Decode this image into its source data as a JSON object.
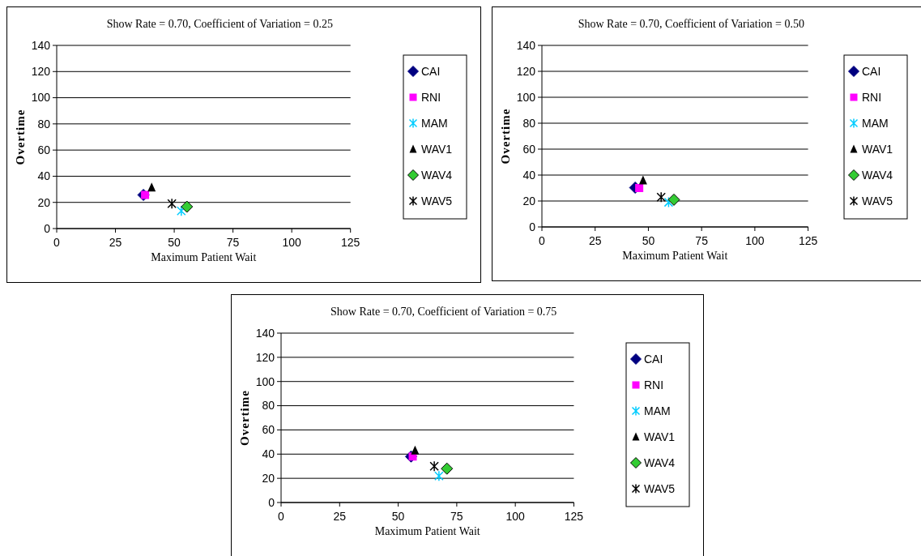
{
  "chart_data": [
    {
      "type": "scatter",
      "title": "Show Rate = 0.70, Coefficient of Variation = 0.25",
      "xlabel": "Maximum Patient Wait",
      "ylabel": "Overtime",
      "xlim": [
        0,
        125
      ],
      "xticks": [
        0,
        25,
        50,
        75,
        100,
        125
      ],
      "ylim": [
        0,
        140
      ],
      "yticks": [
        0,
        20,
        40,
        60,
        80,
        100,
        120,
        140
      ],
      "grid": "y",
      "legend": "right",
      "series": [
        {
          "name": "CAI",
          "color": "#000080",
          "marker": "diamond",
          "x": [
            36.9
          ],
          "values": [
            25.7
          ]
        },
        {
          "name": "RNI",
          "color": "#ff00ff",
          "marker": "square",
          "x": [
            37.6
          ],
          "values": [
            25.7
          ]
        },
        {
          "name": "MAM",
          "color": "#00ccff",
          "marker": "cross",
          "x": [
            53
          ],
          "values": [
            13.5
          ]
        },
        {
          "name": "WAV1",
          "color": "#000000",
          "marker": "triangle",
          "x": [
            40.4
          ],
          "values": [
            31.5
          ]
        },
        {
          "name": "WAV4",
          "color": "#33cc33",
          "marker": "diamond",
          "x": [
            55.4
          ],
          "values": [
            16.7
          ]
        },
        {
          "name": "WAV5",
          "color": "#000000",
          "marker": "cross",
          "x": [
            49
          ],
          "values": [
            19
          ]
        }
      ]
    },
    {
      "type": "scatter",
      "title": "Show Rate = 0.70, Coefficient of Variation = 0.50",
      "xlabel": "Maximum Patient Wait",
      "ylabel": "Overtime",
      "xlim": [
        0,
        125
      ],
      "xticks": [
        0,
        25,
        50,
        75,
        100,
        125
      ],
      "ylim": [
        0,
        140
      ],
      "yticks": [
        0,
        20,
        40,
        60,
        80,
        100,
        120,
        140
      ],
      "grid": "y",
      "legend": "right",
      "series": [
        {
          "name": "CAI",
          "color": "#000080",
          "marker": "diamond",
          "x": [
            43.8
          ],
          "values": [
            30.3
          ]
        },
        {
          "name": "RNI",
          "color": "#ff00ff",
          "marker": "square",
          "x": [
            45.7
          ],
          "values": [
            30
          ]
        },
        {
          "name": "MAM",
          "color": "#00ccff",
          "marker": "cross",
          "x": [
            59.5
          ],
          "values": [
            19
          ]
        },
        {
          "name": "WAV1",
          "color": "#000000",
          "marker": "triangle",
          "x": [
            47.5
          ],
          "values": [
            36
          ]
        },
        {
          "name": "WAV4",
          "color": "#33cc33",
          "marker": "diamond",
          "x": [
            62
          ],
          "values": [
            21
          ]
        },
        {
          "name": "WAV5",
          "color": "#000000",
          "marker": "cross",
          "x": [
            56
          ],
          "values": [
            23
          ]
        }
      ]
    },
    {
      "type": "scatter",
      "title": "Show Rate = 0.70, Coefficient of Variation = 0.75",
      "xlabel": "Maximum Patient Wait",
      "ylabel": "Overtime",
      "xlim": [
        0,
        125
      ],
      "xticks": [
        0,
        25,
        50,
        75,
        100,
        125
      ],
      "ylim": [
        0,
        140
      ],
      "yticks": [
        0,
        20,
        40,
        60,
        80,
        100,
        120,
        140
      ],
      "grid": "y",
      "legend": "right",
      "series": [
        {
          "name": "CAI",
          "color": "#000080",
          "marker": "diamond",
          "x": [
            55.5
          ],
          "values": [
            38
          ]
        },
        {
          "name": "RNI",
          "color": "#ff00ff",
          "marker": "square",
          "x": [
            56.2
          ],
          "values": [
            38
          ]
        },
        {
          "name": "MAM",
          "color": "#00ccff",
          "marker": "cross",
          "x": [
            67.4
          ],
          "values": [
            22
          ]
        },
        {
          "name": "WAV1",
          "color": "#000000",
          "marker": "triangle",
          "x": [
            57.2
          ],
          "values": [
            43
          ]
        },
        {
          "name": "WAV4",
          "color": "#33cc33",
          "marker": "diamond",
          "x": [
            70.8
          ],
          "values": [
            28
          ]
        },
        {
          "name": "WAV5",
          "color": "#000000",
          "marker": "cross",
          "x": [
            65.4
          ],
          "values": [
            30
          ]
        }
      ]
    }
  ]
}
